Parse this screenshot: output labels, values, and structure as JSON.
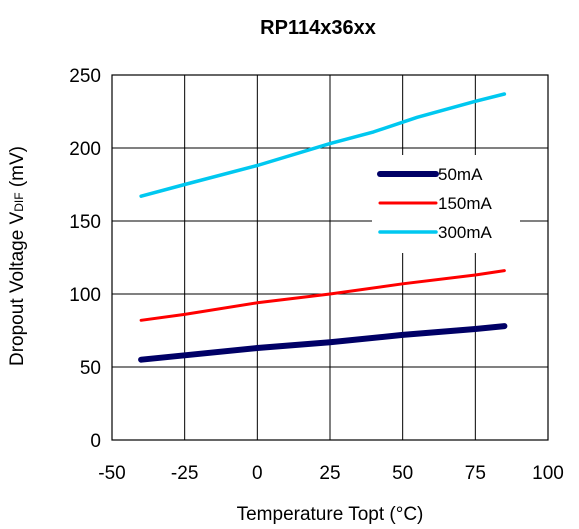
{
  "chart_data": {
    "type": "line",
    "title": "RP114x36xx",
    "xlabel": "Temperature Topt (°C)",
    "ylabel": {
      "main": "Dropout Voltage V",
      "subscript": "DIF",
      "suffix": " (mV)"
    },
    "xlim": [
      -50,
      100
    ],
    "ylim": [
      0,
      250
    ],
    "xticks": [
      -50,
      -25,
      0,
      25,
      50,
      75,
      100
    ],
    "yticks": [
      0,
      50,
      100,
      150,
      200,
      250
    ],
    "grid": true,
    "legend_position": "right-center",
    "series": [
      {
        "name": "50mA",
        "color": "#000066",
        "x": [
          -40,
          -25,
          0,
          25,
          50,
          75,
          85
        ],
        "y": [
          55,
          58,
          63,
          67,
          72,
          76,
          78
        ]
      },
      {
        "name": "150mA",
        "color": "#ff0000",
        "x": [
          -40,
          -25,
          0,
          25,
          50,
          75,
          85
        ],
        "y": [
          82,
          86,
          94,
          100,
          107,
          113,
          116
        ]
      },
      {
        "name": "300mA",
        "color": "#00c8f0",
        "x": [
          -40,
          -25,
          0,
          25,
          40,
          55,
          75,
          85
        ],
        "y": [
          167,
          175,
          188,
          203,
          211,
          221,
          232,
          237
        ]
      }
    ]
  }
}
